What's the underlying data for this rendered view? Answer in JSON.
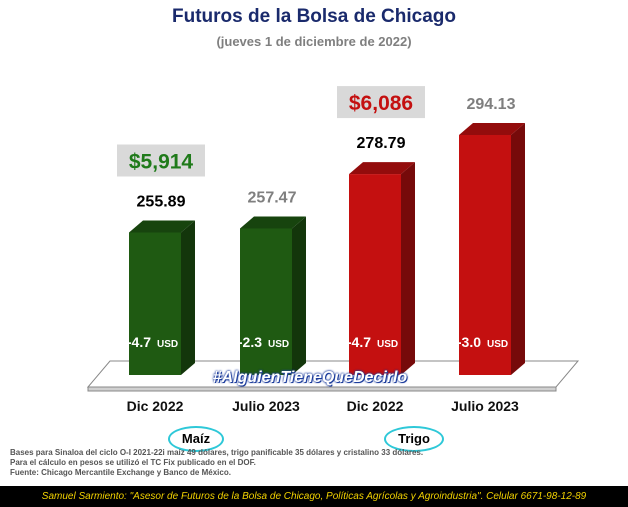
{
  "header": {
    "title": "Futuros de la Bolsa de Chicago",
    "subtitle": "(jueves 1 de diciembre de 2022)"
  },
  "chart_data": {
    "type": "bar",
    "categories": [
      "Dic 2022",
      "Julio 2023",
      "Dic 2022",
      "Julio 2023"
    ],
    "groups": [
      {
        "label": "Maíz",
        "categories": [
          0,
          1
        ],
        "color": "#1f5a12",
        "peso_label": "$5,914",
        "peso_color": "#1f7a1a"
      },
      {
        "label": "Trigo",
        "categories": [
          2,
          3
        ],
        "color": "#c41010",
        "peso_label": "$6,086",
        "peso_color": "#c41010"
      }
    ],
    "values": [
      255.89,
      257.47,
      278.79,
      294.13
    ],
    "value_labels": [
      "255.89",
      "257.47",
      "278.79",
      "294.13"
    ],
    "value_label_colors": [
      "#000000",
      "#7f7f7f",
      "#000000",
      "#7f7f7f"
    ],
    "changes": [
      "-4.7",
      "-2.3",
      "-4.7",
      "-3.0"
    ],
    "change_unit": "USD",
    "ylim": [
      200,
      300
    ]
  },
  "watermark": "#AlguienTieneQueDecirlo",
  "notes": [
    "Bases para Sinaloa del ciclo O-I 2021-22i maíz 49 dólares, trigo panificable 35 dólares y cristalino 33 dólares.",
    "Para el cálculo en pesos se utilizó el TC Fix publicado en el DOF.",
    "Fuente: Chicago Mercantile Exchange y Banco de México."
  ],
  "footer": {
    "name": "Samuel Sarmiento:",
    "text": " \"Asesor de Futuros de la Bolsa de Chicago, Políticas Agrícolas y Agroindustria\". Celular 6671-98-12-89"
  }
}
